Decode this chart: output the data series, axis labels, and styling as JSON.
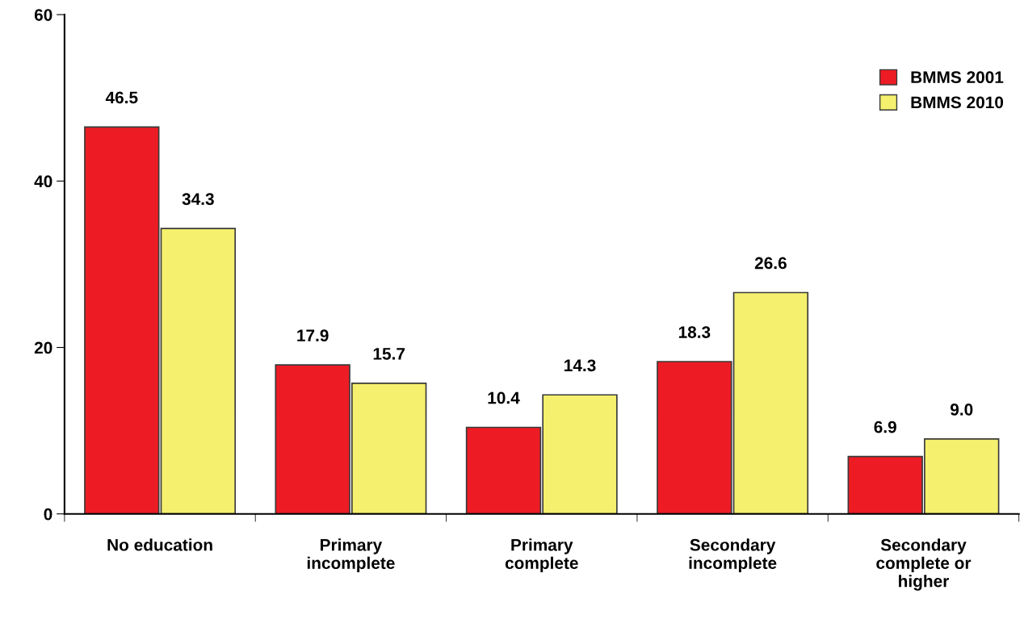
{
  "chart_data": {
    "type": "bar",
    "categories": [
      "No education",
      "Primary\nincomplete",
      "Primary\ncomplete",
      "Secondary\nincomplete",
      "Secondary\ncomplete or\nhigher"
    ],
    "series": [
      {
        "name": "BMMS 2001",
        "color": "#ed1c24",
        "values": [
          46.5,
          17.9,
          10.4,
          18.3,
          6.9
        ],
        "value_labels": [
          "46.5",
          "17.9",
          "10.4",
          "18.3",
          "6.9"
        ]
      },
      {
        "name": "BMMS 2010",
        "color": "#f5f06e",
        "values": [
          34.3,
          15.7,
          14.3,
          26.6,
          9.0
        ],
        "value_labels": [
          "34.3",
          "15.7",
          "14.3",
          "26.6",
          "9.0"
        ]
      }
    ],
    "ylim": [
      0,
      60
    ],
    "yticks": [
      0,
      20,
      40,
      60
    ],
    "legend": "top right",
    "grid": false
  }
}
